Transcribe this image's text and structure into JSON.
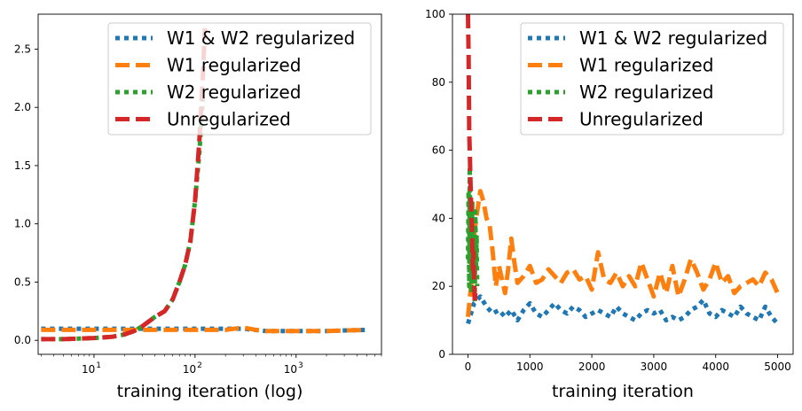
{
  "chart_data": [
    {
      "type": "line",
      "xscale": "log",
      "xlabel": "training iteration (log)",
      "ylabel": "",
      "xlim": [
        2.8,
        7000
      ],
      "ylim": [
        -0.12,
        2.8
      ],
      "yticks": [
        0.0,
        0.5,
        1.0,
        1.5,
        2.0,
        2.5
      ],
      "ytick_labels": [
        "0.0",
        "0.5",
        "1.0",
        "1.5",
        "2.0",
        "2.5"
      ],
      "xticks": [
        {
          "value": 10,
          "base": "10",
          "exp": "1"
        },
        {
          "value": 100,
          "base": "10",
          "exp": "2"
        },
        {
          "value": 1000,
          "base": "10",
          "exp": "3"
        }
      ],
      "legend": "top-right",
      "series": [
        {
          "name": "W1 & W2 regularized",
          "color": "#1f77b4",
          "style": "dotted",
          "x": [
            3,
            5,
            10,
            20,
            30,
            50,
            100,
            200,
            300,
            500,
            1000,
            2000,
            5000
          ],
          "y": [
            0.1,
            0.1,
            0.1,
            0.1,
            0.1,
            0.1,
            0.1,
            0.1,
            0.1,
            0.08,
            0.08,
            0.08,
            0.09
          ]
        },
        {
          "name": "W1 regularized",
          "color": "#ff7f0e",
          "style": "dashed",
          "x": [
            3,
            5,
            10,
            20,
            30,
            50,
            100,
            200,
            300,
            400,
            500,
            1000,
            2000,
            5000
          ],
          "y": [
            0.09,
            0.09,
            0.09,
            0.09,
            0.09,
            0.09,
            0.09,
            0.09,
            0.11,
            0.09,
            0.08,
            0.08,
            0.08,
            0.09
          ]
        },
        {
          "name": "W2 regularized",
          "color": "#2ca02c",
          "style": "dotted",
          "x": [
            3,
            5,
            10,
            15,
            20,
            25,
            30,
            40,
            50,
            60,
            70,
            80,
            90,
            100,
            110,
            120
          ],
          "y": [
            0.01,
            0.01,
            0.02,
            0.03,
            0.05,
            0.08,
            0.12,
            0.2,
            0.25,
            0.35,
            0.5,
            0.65,
            0.85,
            1.2,
            1.6,
            2.1
          ]
        },
        {
          "name": "Unregularized",
          "color": "#d62728",
          "style": "dashed",
          "x": [
            3,
            5,
            10,
            15,
            20,
            25,
            30,
            40,
            50,
            60,
            70,
            80,
            90,
            100,
            110,
            120,
            125
          ],
          "y": [
            0.01,
            0.01,
            0.02,
            0.03,
            0.05,
            0.08,
            0.12,
            0.2,
            0.25,
            0.35,
            0.5,
            0.65,
            0.85,
            1.2,
            1.7,
            2.3,
            2.68
          ]
        }
      ]
    },
    {
      "type": "line",
      "xlabel": "training iteration",
      "ylabel": "",
      "xlim": [
        -250,
        5250
      ],
      "ylim": [
        0,
        100
      ],
      "yticks": [
        0,
        20,
        40,
        60,
        80,
        100
      ],
      "ytick_labels": [
        "0",
        "20",
        "40",
        "60",
        "80",
        "100"
      ],
      "xticks": [
        0,
        1000,
        2000,
        3000,
        4000,
        5000
      ],
      "xtick_labels": [
        "0",
        "1000",
        "2000",
        "3000",
        "4000",
        "5000"
      ],
      "legend": "top-right",
      "series": [
        {
          "name": "W1 & W2 regularized",
          "color": "#1f77b4",
          "style": "dotted",
          "x": [
            0,
            100,
            200,
            300,
            400,
            500,
            600,
            700,
            800,
            900,
            1000,
            1100,
            1200,
            1300,
            1400,
            1500,
            1600,
            1700,
            1800,
            1900,
            2000,
            2100,
            2200,
            2300,
            2400,
            2500,
            2600,
            2700,
            2800,
            2900,
            3000,
            3100,
            3200,
            3300,
            3400,
            3500,
            3600,
            3700,
            3800,
            3900,
            4000,
            4100,
            4200,
            4300,
            4400,
            4500,
            4600,
            4700,
            4800,
            4900,
            5000
          ],
          "y": [
            9,
            15,
            17,
            14,
            12,
            13,
            11,
            13,
            10,
            13,
            15,
            12,
            11,
            13,
            15,
            13,
            12,
            14,
            13,
            11,
            12,
            13,
            12,
            11,
            14,
            12,
            11,
            10,
            12,
            13,
            12,
            13,
            10,
            11,
            10,
            11,
            13,
            14,
            16,
            12,
            11,
            13,
            12,
            11,
            14,
            12,
            11,
            10,
            14,
            11,
            9
          ]
        },
        {
          "name": "W1 regularized",
          "color": "#ff7f0e",
          "style": "dashed",
          "x": [
            0,
            50,
            100,
            150,
            200,
            250,
            300,
            350,
            400,
            450,
            500,
            550,
            600,
            650,
            700,
            750,
            800,
            900,
            1000,
            1100,
            1200,
            1300,
            1400,
            1500,
            1600,
            1700,
            1800,
            1900,
            2000,
            2100,
            2200,
            2300,
            2400,
            2500,
            2600,
            2700,
            2800,
            2900,
            3000,
            3100,
            3200,
            3300,
            3400,
            3500,
            3600,
            3700,
            3800,
            3900,
            4000,
            4100,
            4200,
            4300,
            4400,
            4500,
            4600,
            4700,
            4800,
            4900,
            5000
          ],
          "y": [
            11,
            20,
            35,
            42,
            48,
            45,
            40,
            38,
            30,
            20,
            26,
            22,
            18,
            25,
            34,
            27,
            21,
            23,
            26,
            21,
            22,
            25,
            23,
            21,
            24,
            25,
            22,
            23,
            19,
            30,
            22,
            21,
            24,
            20,
            23,
            20,
            27,
            22,
            17,
            24,
            18,
            26,
            17,
            22,
            28,
            24,
            19,
            22,
            27,
            21,
            23,
            18,
            20,
            21,
            22,
            20,
            24,
            22,
            18
          ]
        },
        {
          "name": "W2 regularized",
          "color": "#2ca02c",
          "style": "dotted",
          "x": [
            0,
            10,
            20,
            30,
            40,
            50,
            60,
            70,
            80,
            90,
            100,
            110,
            120,
            130,
            140,
            150
          ],
          "y": [
            28,
            48,
            20,
            55,
            25,
            40,
            18,
            45,
            22,
            38,
            30,
            15,
            42,
            25,
            35,
            20
          ]
        },
        {
          "name": "Unregularized",
          "color": "#d62728",
          "style": "dashed",
          "x": [
            0,
            10,
            20,
            30,
            40,
            50,
            60,
            70,
            80,
            90,
            100,
            110,
            120
          ],
          "y": [
            100,
            88,
            65,
            60,
            52,
            45,
            40,
            33,
            25,
            30,
            22,
            15,
            18
          ]
        }
      ]
    }
  ]
}
